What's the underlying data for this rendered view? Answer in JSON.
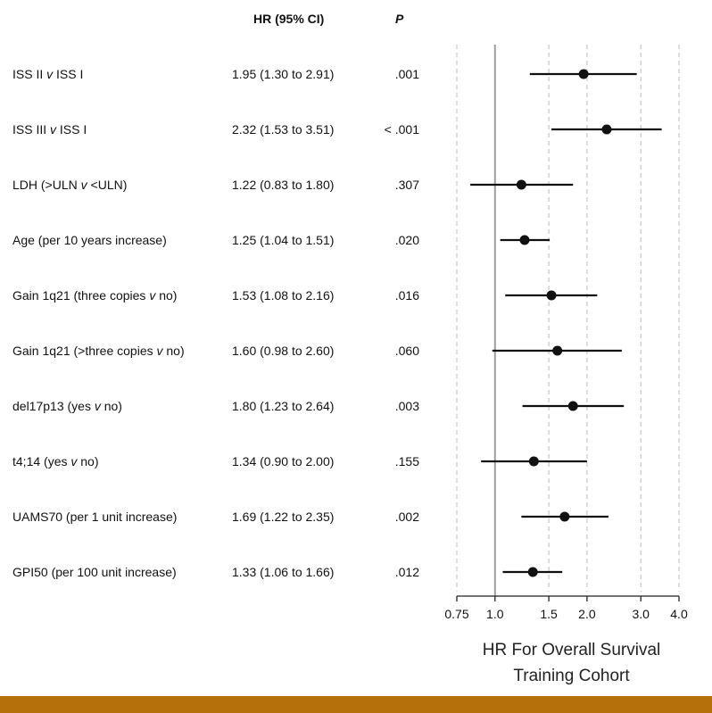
{
  "header": {
    "hr_col": "HR (95% CI)",
    "p_col": "P"
  },
  "rows": [
    {
      "pre": "ISS II ",
      "italic": "v",
      "post": " ISS I",
      "hr_text": "1.95 (1.30 to 2.91)",
      "p": ".001"
    },
    {
      "pre": "ISS III ",
      "italic": "v",
      "post": " ISS I",
      "hr_text": "2.32 (1.53 to 3.51)",
      "p": "< .001"
    },
    {
      "pre": "LDH (>ULN ",
      "italic": "v",
      "post": " <ULN)",
      "hr_text": "1.22 (0.83 to 1.80)",
      "p": ".307"
    },
    {
      "pre": "Age (per 10 years increase)",
      "italic": "",
      "post": "",
      "hr_text": "1.25 (1.04 to 1.51)",
      "p": ".020"
    },
    {
      "pre": "Gain 1q21 (three copies ",
      "italic": "v",
      "post": " no)",
      "hr_text": "1.53 (1.08 to 2.16)",
      "p": ".016"
    },
    {
      "pre": "Gain 1q21 (>three copies ",
      "italic": "v",
      "post": " no)",
      "hr_text": "1.60 (0.98 to 2.60)",
      "p": ".060"
    },
    {
      "pre": "del17p13 (yes ",
      "italic": "v",
      "post": " no)",
      "hr_text": "1.80 (1.23 to 2.64)",
      "p": ".003"
    },
    {
      "pre": "t4;14 (yes ",
      "italic": "v",
      "post": " no)",
      "hr_text": "1.34 (0.90 to 2.00)",
      "p": ".155"
    },
    {
      "pre": "UAMS70 (per 1 unit increase)",
      "italic": "",
      "post": "",
      "hr_text": "1.69 (1.22 to 2.35)",
      "p": ".002"
    },
    {
      "pre": "GPI50 (per 100 unit increase)",
      "italic": "",
      "post": "",
      "hr_text": "1.33 (1.06 to 1.66)",
      "p": ".012"
    }
  ],
  "chart_data": {
    "type": "forest",
    "xscale": "log",
    "xlim": [
      0.75,
      4.0
    ],
    "ticks": [
      0.75,
      1.0,
      1.5,
      2.0,
      3.0,
      4.0
    ],
    "tick_labels": [
      "0.75",
      "1.0",
      "1.5",
      "2.0",
      "3.0",
      "4.0"
    ],
    "reference_line": 1.0,
    "xlabel_line1": "HR For Overall Survival",
    "xlabel_line2": "Training Cohort",
    "points": [
      {
        "hr": 1.95,
        "lo": 1.3,
        "hi": 2.91
      },
      {
        "hr": 2.32,
        "lo": 1.53,
        "hi": 3.51
      },
      {
        "hr": 1.22,
        "lo": 0.83,
        "hi": 1.8
      },
      {
        "hr": 1.25,
        "lo": 1.04,
        "hi": 1.51
      },
      {
        "hr": 1.53,
        "lo": 1.08,
        "hi": 2.16
      },
      {
        "hr": 1.6,
        "lo": 0.98,
        "hi": 2.6
      },
      {
        "hr": 1.8,
        "lo": 1.23,
        "hi": 2.64
      },
      {
        "hr": 1.34,
        "lo": 0.9,
        "hi": 2.0
      },
      {
        "hr": 1.69,
        "lo": 1.22,
        "hi": 2.35
      },
      {
        "hr": 1.33,
        "lo": 1.06,
        "hi": 1.66
      }
    ]
  },
  "colors": {
    "bottom_bar": "#b5700b",
    "reference_line": "#9e9e9e",
    "grid": "#bdbdbd"
  }
}
